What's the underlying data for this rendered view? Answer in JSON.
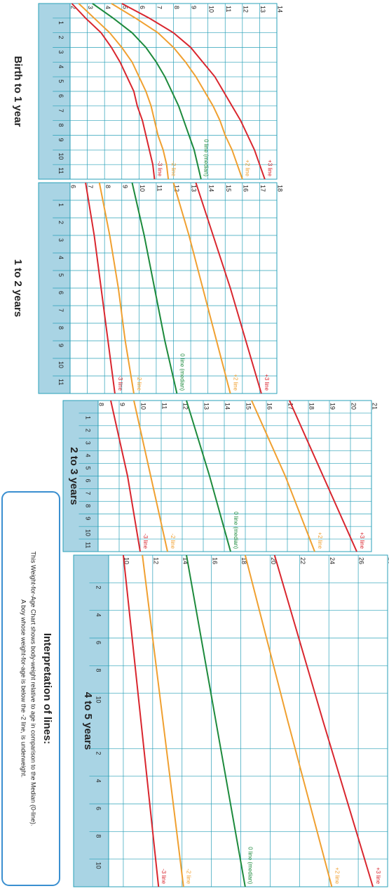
{
  "chart_data": [
    {
      "type": "line",
      "title": "Birth to 1 year",
      "x": [
        0,
        1,
        2,
        3,
        4,
        5,
        6,
        7,
        8,
        9,
        10,
        11,
        12
      ],
      "xlim": [
        0,
        12
      ],
      "xticks": [
        1,
        2,
        3,
        4,
        5,
        6,
        7,
        8,
        9,
        10,
        11
      ],
      "ylim": [
        2,
        14
      ],
      "yticks": [
        2,
        3,
        4,
        5,
        6,
        7,
        8,
        9,
        10,
        11,
        12,
        13,
        14
      ],
      "grid": true,
      "series": [
        {
          "name": "+3 line",
          "color": "#d9262e",
          "values": [
            5.0,
            6.6,
            8.0,
            9.0,
            9.7,
            10.4,
            10.9,
            11.4,
            11.9,
            12.3,
            12.7,
            13.0,
            13.3
          ]
        },
        {
          "name": "+2 line",
          "color": "#f0a030",
          "values": [
            4.4,
            5.8,
            7.1,
            8.0,
            8.7,
            9.3,
            9.8,
            10.3,
            10.7,
            11.0,
            11.4,
            11.7,
            12.0
          ]
        },
        {
          "name": "0 line (median)",
          "color": "#1d8a3c",
          "values": [
            3.3,
            4.5,
            5.6,
            6.4,
            7.0,
            7.5,
            7.9,
            8.3,
            8.6,
            8.9,
            9.2,
            9.4,
            9.6
          ]
        },
        {
          "name": "-2 line",
          "color": "#f0a030",
          "values": [
            2.5,
            3.4,
            4.3,
            5.0,
            5.6,
            6.0,
            6.4,
            6.7,
            6.9,
            7.1,
            7.4,
            7.6,
            7.7
          ]
        },
        {
          "name": "-3 line",
          "color": "#d9262e",
          "values": [
            2.1,
            2.9,
            3.8,
            4.4,
            4.9,
            5.3,
            5.7,
            5.9,
            6.2,
            6.4,
            6.6,
            6.8,
            6.9
          ]
        }
      ]
    },
    {
      "type": "line",
      "title": "1 to 2 years",
      "x": [
        0,
        3,
        6,
        9,
        12
      ],
      "xlim": [
        0,
        12
      ],
      "xticks": [
        1,
        2,
        3,
        4,
        5,
        6,
        7,
        8,
        9,
        10,
        11
      ],
      "ylim": [
        6,
        18
      ],
      "yticks": [
        6,
        7,
        8,
        9,
        10,
        11,
        12,
        13,
        14,
        15,
        16,
        17,
        18
      ],
      "grid": true,
      "series": [
        {
          "name": "+3 line",
          "color": "#d9262e",
          "values": [
            13.3,
            14.3,
            15.3,
            16.2,
            17.1
          ]
        },
        {
          "name": "+2 line",
          "color": "#f0a030",
          "values": [
            12.0,
            12.9,
            13.7,
            14.5,
            15.3
          ]
        },
        {
          "name": "0 line (median)",
          "color": "#1d8a3c",
          "values": [
            9.6,
            10.3,
            10.9,
            11.5,
            12.2
          ]
        },
        {
          "name": "-2 line",
          "color": "#f0a030",
          "values": [
            7.7,
            8.3,
            8.8,
            9.2,
            9.7
          ]
        },
        {
          "name": "-3 line",
          "color": "#d9262e",
          "values": [
            6.9,
            7.4,
            7.8,
            8.2,
            8.6
          ]
        }
      ]
    },
    {
      "type": "line",
      "title": "2 to 3 years",
      "x": [
        0,
        6,
        12
      ],
      "xlim": [
        0,
        12
      ],
      "xticks": [
        1,
        2,
        3,
        4,
        5,
        6,
        7,
        8,
        9,
        10,
        11
      ],
      "ylim": [
        8,
        21
      ],
      "yticks": [
        8,
        9,
        10,
        11,
        12,
        13,
        14,
        15,
        16,
        17,
        18,
        19,
        20,
        21
      ],
      "grid": true,
      "series": [
        {
          "name": "+3 line",
          "color": "#d9262e",
          "values": [
            17.1,
            18.7,
            20.3
          ]
        },
        {
          "name": "+2 line",
          "color": "#f0a030",
          "values": [
            15.3,
            16.9,
            18.3
          ]
        },
        {
          "name": "0 line (median)",
          "color": "#1d8a3c",
          "values": [
            12.2,
            13.3,
            14.3
          ]
        },
        {
          "name": "-2 line",
          "color": "#f0a030",
          "values": [
            9.7,
            10.5,
            11.3
          ]
        },
        {
          "name": "-3 line",
          "color": "#d9262e",
          "values": [
            8.6,
            9.4,
            10.0
          ]
        }
      ]
    },
    {
      "type": "line",
      "title": "4 to 5 years",
      "x": [
        0,
        12,
        24
      ],
      "xlim": [
        0,
        24
      ],
      "xticks": [
        2,
        4,
        6,
        8,
        10,
        {
          "value": 14,
          "label": "2"
        },
        {
          "value": 16,
          "label": "4"
        },
        {
          "value": 18,
          "label": "6"
        },
        {
          "value": 20,
          "label": "8"
        },
        {
          "value": 22,
          "label": "10"
        }
      ],
      "ylim": [
        9,
        28
      ],
      "yticks": [
        10,
        12,
        14,
        16,
        18,
        20,
        22,
        24,
        26,
        28
      ],
      "grid": true,
      "series": [
        {
          "name": "+3 line",
          "color": "#d9262e",
          "values": [
            20.3,
            23.6,
            27.0
          ]
        },
        {
          "name": "+2 line",
          "color": "#f0a030",
          "values": [
            18.3,
            21.2,
            24.2
          ]
        },
        {
          "name": "0 line (median)",
          "color": "#1d8a3c",
          "values": [
            14.3,
            16.3,
            18.3
          ]
        },
        {
          "name": "-2 line",
          "color": "#f0a030",
          "values": [
            11.3,
            12.7,
            14.1
          ]
        },
        {
          "name": "-3 line",
          "color": "#d9262e",
          "values": [
            10.0,
            11.2,
            12.4
          ]
        }
      ]
    }
  ],
  "interpretation": {
    "title": "Interpretation of lines:",
    "lines": [
      "This Weight-for-Age Chart shows body-weight relative to age in comparison to the Median (0-line).",
      "A boy whose weight-for-age is below the -2 line, is underweight."
    ]
  }
}
